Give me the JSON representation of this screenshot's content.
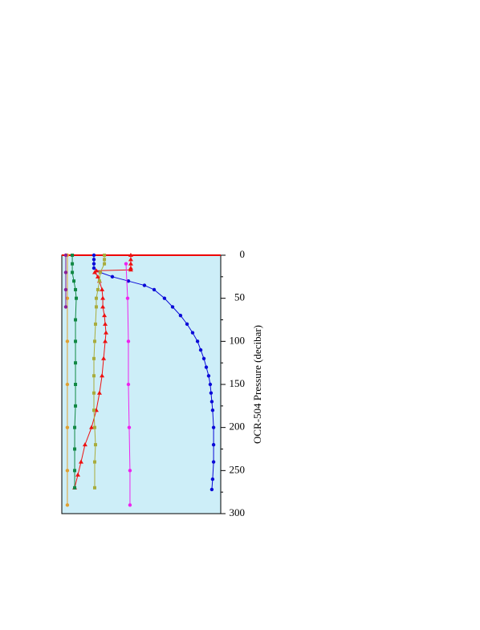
{
  "chart_data": {
    "type": "profile",
    "y_label": "OCR-504 Pressure (decibar)",
    "ylim": [
      0,
      300
    ],
    "yticks": [
      0,
      50,
      100,
      150,
      200,
      250,
      300
    ],
    "xlim": [
      0,
      100
    ],
    "series": [
      {
        "color": "#0a0ad8",
        "marker": "circle",
        "pressure": [
          0,
          5,
          10,
          15,
          20,
          25,
          30,
          35,
          40,
          50,
          60,
          70,
          80,
          90,
          100,
          110,
          120,
          130,
          140,
          150,
          160,
          170,
          180,
          200,
          220,
          240,
          260,
          272
        ],
        "values": [
          20.2,
          20.2,
          20.2,
          20.2,
          24.2,
          31.8,
          41.9,
          52,
          58.1,
          64.6,
          69.7,
          74.7,
          78.8,
          82.3,
          85.4,
          87.4,
          89.4,
          90.9,
          92.4,
          93.4,
          93.9,
          94.4,
          94.9,
          95.5,
          95.5,
          95.5,
          94.9,
          94.4
        ]
      },
      {
        "color": "#ee1111",
        "marker": "triangle",
        "pressure": [
          0,
          5,
          10,
          15,
          17,
          18,
          20,
          25,
          30,
          40,
          50,
          60,
          70,
          80,
          90,
          100,
          120,
          140,
          160,
          180,
          200,
          220,
          240,
          255,
          270
        ],
        "values": [
          43.4,
          43.4,
          43.4,
          43.4,
          43.4,
          21.7,
          20.7,
          22.7,
          23.7,
          25.3,
          25.8,
          25.8,
          26.8,
          27.3,
          27.8,
          27.3,
          26.3,
          25.3,
          23.7,
          21.7,
          18.7,
          14.6,
          12.1,
          10.1,
          8.1
        ]
      },
      {
        "color": "#a8ac3c",
        "marker": "square",
        "pressure": [
          0,
          5,
          10,
          20,
          30,
          40,
          50,
          60,
          80,
          100,
          120,
          140,
          160,
          180,
          200,
          220,
          240,
          270
        ],
        "values": [
          26.8,
          26.8,
          26.8,
          24.2,
          23.7,
          22.7,
          21.7,
          21.7,
          21.2,
          20.7,
          20.2,
          20.2,
          20.2,
          20.2,
          20.7,
          21.2,
          20.7,
          20.7
        ]
      },
      {
        "color": "#ee22ee",
        "marker": "circle",
        "pressure": [
          10,
          50,
          100,
          150,
          200,
          250,
          290
        ],
        "values": [
          40.4,
          41.4,
          41.9,
          41.9,
          42.4,
          42.9,
          42.9
        ]
      },
      {
        "color": "#118844",
        "marker": "square",
        "pressure": [
          0,
          10,
          20,
          30,
          40,
          50,
          75,
          100,
          125,
          150,
          175,
          200,
          225,
          250,
          270
        ],
        "values": [
          6.6,
          6.6,
          6.6,
          7.6,
          8.6,
          9.1,
          8.6,
          8.6,
          8.6,
          8.6,
          8.6,
          8.1,
          8.1,
          8.1,
          8.1
        ]
      },
      {
        "color": "#e0a030",
        "marker": "circle",
        "pressure": [
          0,
          50,
          100,
          150,
          200,
          250,
          290
        ],
        "values": [
          3.5,
          3.5,
          3.5,
          3.5,
          3.5,
          3.5,
          3.5
        ]
      },
      {
        "color": "#882299",
        "marker": "circle",
        "pressure": [
          0,
          20,
          40,
          60
        ],
        "values": [
          2.5,
          2.5,
          2.5,
          2.5
        ]
      }
    ]
  }
}
